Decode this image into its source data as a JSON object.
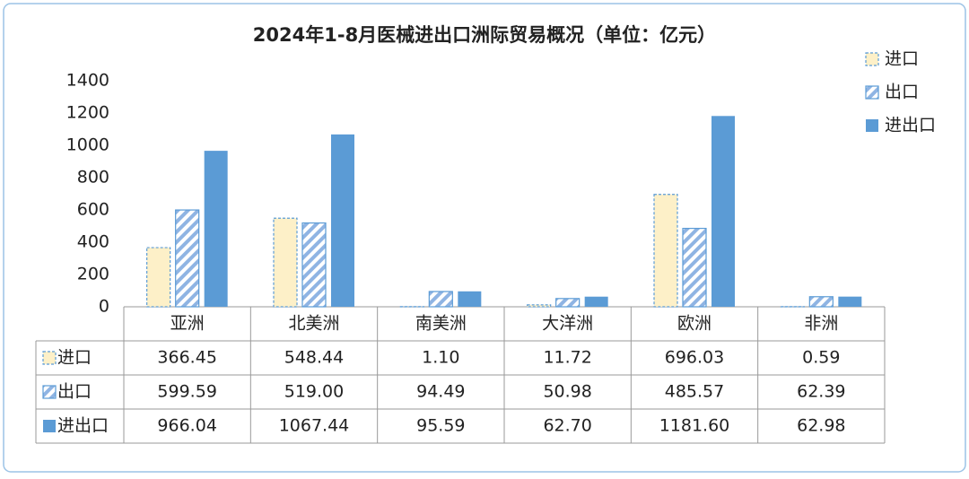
{
  "chart_data": {
    "type": "bar",
    "title": "2024年1-8月医械进出口洲际贸易概况（单位：亿元）",
    "categories": [
      "亚洲",
      "北美洲",
      "南美洲",
      "大洋洲",
      "欧洲",
      "非洲"
    ],
    "series": [
      {
        "name": "进口",
        "color": "#fdf0c8",
        "values": [
          366.45,
          548.44,
          1.1,
          11.72,
          696.03,
          0.59
        ],
        "value_labels": [
          "366.45",
          "548.44",
          "1.10",
          "11.72",
          "696.03",
          "0.59"
        ]
      },
      {
        "name": "出口",
        "color": "#5b9bd5",
        "values": [
          599.59,
          519.0,
          94.49,
          50.98,
          485.57,
          62.39
        ],
        "value_labels": [
          "599.59",
          "519.00",
          "94.49",
          "50.98",
          "485.57",
          "62.39"
        ]
      },
      {
        "name": "进出口",
        "color": "#5b9bd5",
        "values": [
          966.04,
          1067.44,
          95.59,
          62.7,
          1181.6,
          62.98
        ],
        "value_labels": [
          "966.04",
          "1067.44",
          "95.59",
          "62.70",
          "1181.60",
          "62.98"
        ]
      }
    ],
    "ylim": [
      0,
      1400
    ],
    "yticks": [
      0,
      200,
      400,
      600,
      800,
      1000,
      1200,
      1400
    ],
    "legend": "top-right"
  }
}
